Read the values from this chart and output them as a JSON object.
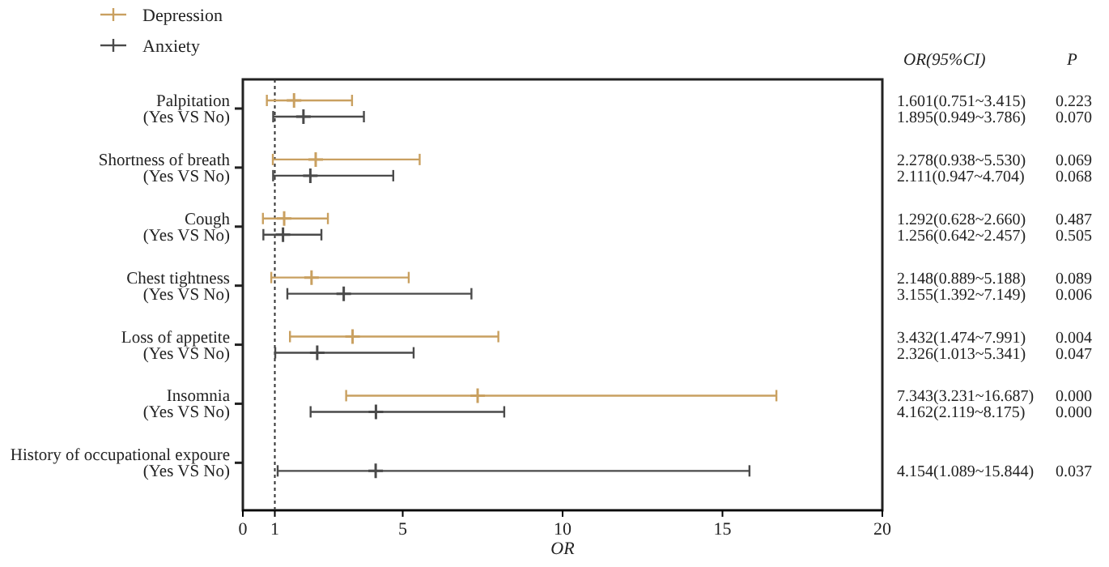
{
  "chart_data": {
    "type": "scatter",
    "orientation": "horizontal",
    "categories": [
      "Palpitation",
      "(Yes VS No)",
      "Shortness of breath",
      "(Yes VS No)",
      "Cough",
      "(Yes VS No)",
      "Chest tightness",
      "(Yes VS No)",
      "Loss of appetite",
      "(Yes VS No)",
      "Insomnia",
      "(Yes VS No)",
      "History of occupational expoure",
      "(Yes VS No)"
    ],
    "series": [
      {
        "name": "Depression",
        "color": "#c9a060",
        "values": [
          1.601,
          null,
          2.278,
          null,
          1.292,
          null,
          2.148,
          null,
          3.432,
          null,
          7.343,
          null,
          null,
          null
        ],
        "errors": [
          [
            0.751,
            3.415
          ],
          null,
          [
            0.938,
            5.53
          ],
          null,
          [
            0.628,
            2.66
          ],
          null,
          [
            0.889,
            5.188
          ],
          null,
          [
            1.474,
            7.991
          ],
          null,
          [
            3.231,
            16.687
          ],
          null,
          null,
          null
        ]
      },
      {
        "name": "Anxiety",
        "color": "#4a4a4a",
        "values": [
          null,
          1.895,
          null,
          2.111,
          null,
          1.256,
          null,
          3.155,
          null,
          2.326,
          null,
          4.162,
          null,
          4.154
        ],
        "errors": [
          null,
          [
            0.949,
            3.786
          ],
          null,
          [
            0.947,
            4.704
          ],
          null,
          [
            0.642,
            2.457
          ],
          null,
          [
            1.392,
            7.149
          ],
          null,
          [
            1.013,
            5.341
          ],
          null,
          [
            2.119,
            8.175
          ],
          null,
          [
            1.089,
            15.844
          ]
        ]
      }
    ],
    "xlabel": "OR",
    "xlim": [
      0,
      20
    ],
    "xticks": [
      0,
      1,
      5,
      10,
      15,
      20
    ],
    "ref_lines": [
      {
        "axis": "x",
        "value": 1,
        "color": "#333333",
        "line_style": "dotted"
      }
    ],
    "annotations": [
      "OR(95%CI)",
      "P",
      "1.601(0.751~3.415)",
      "0.223",
      "1.895(0.949~3.786)",
      "0.070",
      "2.278(0.938~5.530)",
      "0.069",
      "2.111(0.947~4.704)",
      "0.068",
      "1.292(0.628~2.660)",
      "0.487",
      "1.256(0.642~2.457)",
      "0.505",
      "2.148(0.889~5.188)",
      "0.089",
      "3.155(1.392~7.149)",
      "0.006",
      "3.432(1.474~7.991)",
      "0.004",
      "2.326(1.013~5.341)",
      "0.047",
      "7.343(3.231~16.687)",
      "0.000",
      "4.162(2.119~8.175)",
      "0.000",
      "4.154(1.089~15.844)",
      "0.037"
    ],
    "legend": "top left",
    "grid": false,
    "marker": "cross"
  }
}
